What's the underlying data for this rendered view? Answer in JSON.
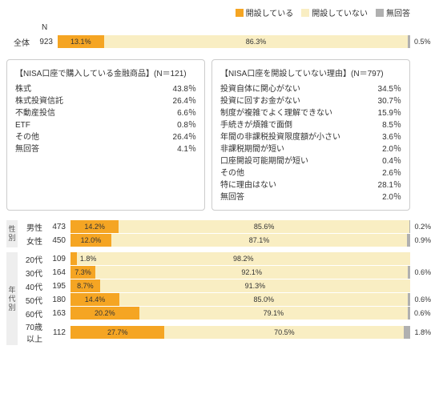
{
  "colors": {
    "opened": "#f5a523",
    "not_opened": "#f9eec3",
    "no_answer": "#b0b0b0",
    "text": "#333333",
    "box_border": "#cccccc"
  },
  "legend": [
    {
      "label": "開設している",
      "color": "#f5a523"
    },
    {
      "label": "開設していない",
      "color": "#f9eec3"
    },
    {
      "label": "無回答",
      "color": "#b0b0b0"
    }
  ],
  "n_header": "N",
  "overall": {
    "label": "全体",
    "n": "923",
    "segs": [
      {
        "v": 13.1,
        "t": "13.1%",
        "c": "#f5a523"
      },
      {
        "v": 86.3,
        "t": "86.3%",
        "c": "#f9eec3"
      },
      {
        "v": 0.5,
        "t": "0.5%",
        "c": "#b0b0b0"
      }
    ]
  },
  "callout_left": {
    "title": "【NISA口座で購入している金融商品】(N＝121)",
    "rows": [
      {
        "k": "株式",
        "v": "43.8％"
      },
      {
        "k": "株式投資信託",
        "v": "26.4％"
      },
      {
        "k": "不動産投信",
        "v": "6.6％"
      },
      {
        "k": "ETF",
        "v": "0.8％"
      },
      {
        "k": "その他",
        "v": "26.4％"
      },
      {
        "k": "無回答",
        "v": "4.1％"
      }
    ]
  },
  "callout_right": {
    "title": "【NISA口座を開設していない理由】(N＝797)",
    "rows": [
      {
        "k": "投資自体に関心がない",
        "v": "34.5％"
      },
      {
        "k": "投資に回すお金がない",
        "v": "30.7％"
      },
      {
        "k": "制度が複雑でよく理解できない",
        "v": "15.9％"
      },
      {
        "k": "手続きが煩雑で面倒",
        "v": "8.5％"
      },
      {
        "k": "年間の非課税投資限度額が小さい",
        "v": "3.6％"
      },
      {
        "k": "非課税期間が短い",
        "v": "2.0％"
      },
      {
        "k": "口座開設可能期間が短い",
        "v": "0.4％"
      },
      {
        "k": "その他",
        "v": "2.6％"
      },
      {
        "k": "特に理由はない",
        "v": "28.1％"
      },
      {
        "k": "無回答",
        "v": "2.0％"
      }
    ]
  },
  "groups": [
    {
      "glabel": "性別",
      "rows": [
        {
          "label": "男性",
          "n": "473",
          "segs": [
            {
              "v": 14.2,
              "t": "14.2%",
              "c": "#f5a523"
            },
            {
              "v": 85.6,
              "t": "85.6%",
              "c": "#f9eec3"
            },
            {
              "v": 0.2,
              "t": "0.2%",
              "c": "#b0b0b0"
            }
          ]
        },
        {
          "label": "女性",
          "n": "450",
          "segs": [
            {
              "v": 12.0,
              "t": "12.0%",
              "c": "#f5a523"
            },
            {
              "v": 87.1,
              "t": "87.1%",
              "c": "#f9eec3"
            },
            {
              "v": 0.9,
              "t": "0.9%",
              "c": "#b0b0b0"
            }
          ]
        }
      ]
    },
    {
      "glabel": "年代別",
      "rows": [
        {
          "label": "20代",
          "n": "109",
          "segs": [
            {
              "v": 1.8,
              "t": "1.8%",
              "c": "#f5a523",
              "out": true
            },
            {
              "v": 98.2,
              "t": "98.2%",
              "c": "#f9eec3"
            },
            {
              "v": 0,
              "t": "",
              "c": "#b0b0b0"
            }
          ]
        },
        {
          "label": "30代",
          "n": "164",
          "segs": [
            {
              "v": 7.3,
              "t": "7.3%",
              "c": "#f5a523"
            },
            {
              "v": 92.1,
              "t": "92.1%",
              "c": "#f9eec3"
            },
            {
              "v": 0.6,
              "t": "0.6%",
              "c": "#b0b0b0"
            }
          ]
        },
        {
          "label": "40代",
          "n": "195",
          "segs": [
            {
              "v": 8.7,
              "t": "8.7%",
              "c": "#f5a523"
            },
            {
              "v": 91.3,
              "t": "91.3%",
              "c": "#f9eec3"
            },
            {
              "v": 0,
              "t": "",
              "c": "#b0b0b0"
            }
          ]
        },
        {
          "label": "50代",
          "n": "180",
          "segs": [
            {
              "v": 14.4,
              "t": "14.4%",
              "c": "#f5a523"
            },
            {
              "v": 85.0,
              "t": "85.0%",
              "c": "#f9eec3"
            },
            {
              "v": 0.6,
              "t": "0.6%",
              "c": "#b0b0b0"
            }
          ]
        },
        {
          "label": "60代",
          "n": "163",
          "segs": [
            {
              "v": 20.2,
              "t": "20.2%",
              "c": "#f5a523"
            },
            {
              "v": 79.1,
              "t": "79.1%",
              "c": "#f9eec3"
            },
            {
              "v": 0.6,
              "t": "0.6%",
              "c": "#b0b0b0"
            }
          ]
        },
        {
          "label": "70歳以上",
          "n": "112",
          "segs": [
            {
              "v": 27.7,
              "t": "27.7%",
              "c": "#f5a523"
            },
            {
              "v": 70.5,
              "t": "70.5%",
              "c": "#f9eec3"
            },
            {
              "v": 1.8,
              "t": "1.8%",
              "c": "#b0b0b0"
            }
          ]
        }
      ]
    }
  ]
}
